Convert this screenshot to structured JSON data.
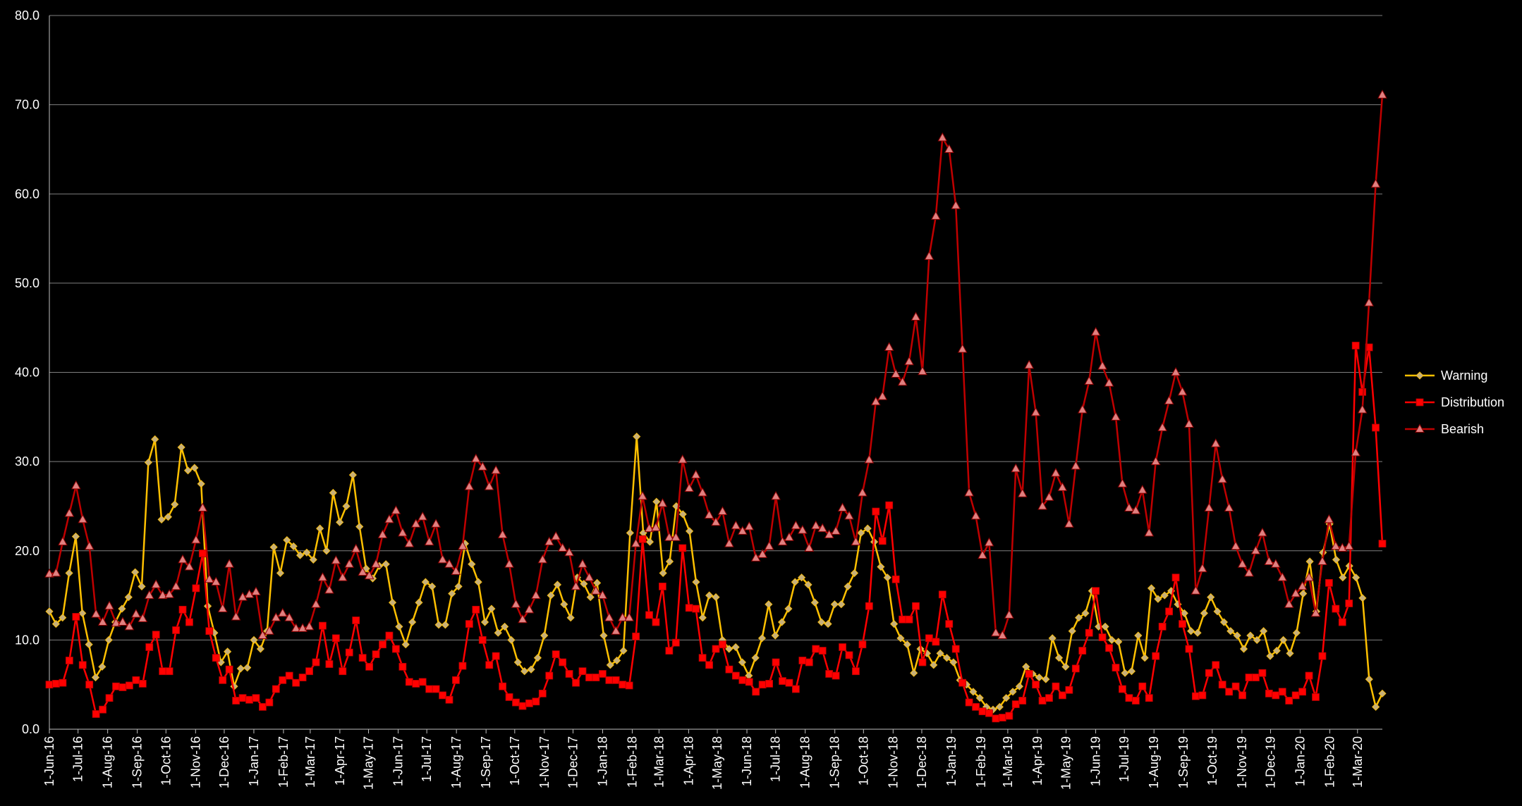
{
  "chart_data": {
    "type": "line",
    "title": "",
    "xlabel": "",
    "ylabel": "",
    "ylim": [
      0,
      80
    ],
    "y_ticks": [
      "0.0",
      "10.0",
      "20.0",
      "30.0",
      "40.0",
      "50.0",
      "60.0",
      "70.0",
      "80.0"
    ],
    "grid": "horizontal",
    "legend_position": "right",
    "background": "#000000",
    "x_start": "2016-06-01",
    "x_end": "2020-03-27",
    "x_ticks": [
      "1-Jun-16",
      "1-Jul-16",
      "1-Aug-16",
      "1-Sep-16",
      "1-Oct-16",
      "1-Nov-16",
      "1-Dec-16",
      "1-Jan-17",
      "1-Feb-17",
      "1-Mar-17",
      "1-Apr-17",
      "1-May-17",
      "1-Jun-17",
      "1-Jul-17",
      "1-Aug-17",
      "1-Sep-17",
      "1-Oct-17",
      "1-Nov-17",
      "1-Dec-17",
      "1-Jan-18",
      "1-Feb-18",
      "1-Mar-18",
      "1-Apr-18",
      "1-May-18",
      "1-Jun-18",
      "1-Jul-18",
      "1-Aug-18",
      "1-Sep-18",
      "1-Oct-18",
      "1-Nov-18",
      "1-Dec-18",
      "1-Jan-19",
      "1-Feb-19",
      "1-Mar-19",
      "1-Apr-19",
      "1-May-19",
      "1-Jun-19",
      "1-Jul-19",
      "1-Aug-19",
      "1-Sep-19",
      "1-Oct-19",
      "1-Nov-19",
      "1-Dec-19",
      "1-Jan-20",
      "1-Feb-20",
      "1-Mar-20"
    ],
    "series": [
      {
        "name": "Warning",
        "color": "#FFC000",
        "marker": "diamond",
        "marker_color": "#C8B078",
        "values": [
          13.2,
          11.8,
          12.5,
          17.5,
          21.6,
          13.0,
          9.5,
          5.8,
          7.0,
          10.0,
          12.0,
          13.5,
          14.8,
          17.6,
          16.0,
          29.9,
          32.5,
          23.5,
          23.8,
          25.2,
          31.6,
          29.0,
          29.3,
          27.5,
          13.8,
          10.8,
          7.5,
          8.7,
          4.8,
          6.8,
          6.9,
          10.0,
          9.0,
          11.0,
          20.4,
          17.5,
          21.2,
          20.5,
          19.5,
          19.8,
          19.0,
          22.5,
          20.0,
          26.5,
          23.2,
          25.0,
          28.5,
          22.7,
          18.0,
          16.9,
          18.3,
          18.5,
          14.2,
          11.5,
          9.5,
          12.0,
          14.2,
          16.5,
          16.0,
          11.7,
          11.7,
          15.2,
          16.0,
          20.8,
          18.5,
          16.5,
          12.0,
          13.5,
          10.8,
          11.5,
          10.0,
          7.5,
          6.5,
          6.7,
          8.0,
          10.5,
          15.0,
          16.2,
          14.0,
          12.5,
          17.0,
          16.3,
          14.8,
          16.4,
          10.5,
          7.2,
          7.7,
          8.8,
          22.0,
          32.8,
          22.0,
          21.0,
          25.5,
          17.5,
          18.8,
          25.0,
          24.1,
          22.2,
          16.5,
          12.5,
          15.0,
          14.8,
          10.0,
          9.0,
          9.2,
          7.5,
          6.0,
          8.0,
          10.2,
          14.0,
          10.5,
          12.0,
          13.5,
          16.5,
          17.0,
          16.2,
          14.2,
          12.0,
          11.8,
          14.0,
          14.0,
          16.0,
          17.5,
          22.0,
          22.5,
          21.0,
          18.2,
          17.0,
          11.8,
          10.2,
          9.5,
          6.3,
          9.0,
          8.5,
          7.2,
          8.5,
          8.0,
          7.5,
          5.5,
          5.0,
          4.2,
          3.5,
          2.5,
          2.2,
          2.5,
          3.5,
          4.2,
          4.8,
          7.0,
          6.2,
          5.8,
          5.6,
          10.2,
          8.0,
          7.0,
          11.0,
          12.5,
          13.0,
          15.5,
          11.5,
          11.5,
          10.0,
          9.8,
          6.3,
          6.5,
          10.5,
          8.0,
          15.8,
          14.6,
          15.0,
          15.5,
          14.0,
          13.0,
          11.0,
          10.8,
          13.0,
          14.8,
          13.2,
          12.0,
          11.0,
          10.5,
          9.0,
          10.5,
          10.0,
          11.0,
          8.2,
          8.8,
          10.0,
          8.5,
          10.8,
          15.2,
          18.8,
          13.2,
          19.8,
          23.0,
          19.0,
          17.0,
          18.3,
          17.0,
          14.7,
          5.6,
          2.5,
          4.0
        ]
      },
      {
        "name": "Distribution",
        "color": "#FF0000",
        "marker": "square",
        "marker_color": "#FF0000",
        "values": [
          5.0,
          5.1,
          5.2,
          7.7,
          12.6,
          7.2,
          5.0,
          1.7,
          2.2,
          3.5,
          4.8,
          4.7,
          4.9,
          5.5,
          5.1,
          9.2,
          10.6,
          6.5,
          6.5,
          11.1,
          13.4,
          12.0,
          15.8,
          19.7,
          11.0,
          8.0,
          5.5,
          6.7,
          3.2,
          3.5,
          3.3,
          3.5,
          2.5,
          3.0,
          4.5,
          5.5,
          6.0,
          5.2,
          5.8,
          6.5,
          7.5,
          11.6,
          7.3,
          10.2,
          6.5,
          8.6,
          12.2,
          8.0,
          7.0,
          8.4,
          9.5,
          10.5,
          9.0,
          7.0,
          5.3,
          5.1,
          5.3,
          4.5,
          4.5,
          3.8,
          3.3,
          5.5,
          7.1,
          11.8,
          13.4,
          10.0,
          7.2,
          8.2,
          4.8,
          3.6,
          3.0,
          2.6,
          2.9,
          3.1,
          4.0,
          6.0,
          8.4,
          7.5,
          6.2,
          5.2,
          6.5,
          5.8,
          5.8,
          6.2,
          5.5,
          5.5,
          5.0,
          4.9,
          10.4,
          21.3,
          12.8,
          12.0,
          16.0,
          8.8,
          9.7,
          20.3,
          13.6,
          13.5,
          8.0,
          7.2,
          9.0,
          9.5,
          6.7,
          6.0,
          5.5,
          5.3,
          4.2,
          5.0,
          5.1,
          7.5,
          5.4,
          5.2,
          4.5,
          7.7,
          7.5,
          9.0,
          8.8,
          6.2,
          6.0,
          9.2,
          8.3,
          6.5,
          9.5,
          13.8,
          24.4,
          21.1,
          25.1,
          16.8,
          12.3,
          12.3,
          13.8,
          7.5,
          10.2,
          9.8,
          15.1,
          11.8,
          9.0,
          5.2,
          3.0,
          2.5,
          2.0,
          1.8,
          1.2,
          1.3,
          1.5,
          2.8,
          3.2,
          6.2,
          5.0,
          3.2,
          3.5,
          4.8,
          3.8,
          4.4,
          6.8,
          8.8,
          10.8,
          15.5,
          10.3,
          9.1,
          6.9,
          4.5,
          3.5,
          3.2,
          4.8,
          3.5,
          8.2,
          11.5,
          13.2,
          17.0,
          11.8,
          9.0,
          3.7,
          3.8,
          6.3,
          7.2,
          5.0,
          4.2,
          4.8,
          3.8,
          5.8,
          5.8,
          6.3,
          4.0,
          3.8,
          4.2,
          3.2,
          3.8,
          4.2,
          6.0,
          3.6,
          8.2,
          16.4,
          13.5,
          12.0,
          14.1,
          43.0,
          37.8,
          42.8,
          33.8,
          20.8
        ]
      },
      {
        "name": "Bearish",
        "color": "#C00000",
        "marker": "triangle",
        "marker_color": "#E08080",
        "values": [
          17.4,
          17.5,
          21.0,
          24.2,
          27.3,
          23.5,
          20.5,
          12.9,
          12.0,
          13.8,
          11.9,
          12.0,
          11.5,
          12.9,
          12.4,
          15.0,
          16.2,
          15.0,
          15.1,
          16.0,
          19.0,
          18.2,
          21.2,
          24.8,
          16.8,
          16.5,
          13.5,
          18.5,
          12.6,
          14.8,
          15.1,
          15.4,
          10.5,
          11.0,
          12.5,
          13.0,
          12.5,
          11.3,
          11.3,
          11.5,
          14.0,
          17.0,
          15.6,
          18.9,
          17.0,
          18.5,
          20.2,
          17.6,
          17.2,
          18.5,
          21.8,
          23.5,
          24.5,
          22.0,
          20.8,
          23.0,
          23.8,
          21.0,
          23.0,
          19.0,
          18.5,
          17.7,
          20.5,
          27.2,
          30.3,
          29.4,
          27.2,
          29.0,
          21.8,
          18.5,
          14.0,
          12.3,
          13.4,
          15.0,
          19.0,
          21.0,
          21.6,
          20.3,
          19.8,
          16.0,
          18.5,
          17.0,
          15.5,
          15.0,
          12.5,
          11.0,
          12.5,
          12.5,
          20.8,
          26.1,
          22.5,
          22.6,
          25.3,
          21.5,
          21.5,
          30.2,
          27.0,
          28.5,
          26.5,
          24.0,
          23.2,
          24.4,
          20.8,
          22.8,
          22.2,
          22.7,
          19.2,
          19.6,
          20.5,
          26.1,
          21.0,
          21.5,
          22.8,
          22.3,
          20.3,
          22.8,
          22.5,
          21.8,
          22.2,
          24.8,
          23.9,
          21.0,
          26.5,
          30.2,
          36.7,
          37.3,
          42.8,
          39.8,
          38.9,
          41.2,
          46.2,
          40.1,
          53.0,
          57.5,
          66.3,
          65.0,
          58.7,
          42.6,
          26.5,
          23.9,
          19.5,
          20.9,
          10.8,
          10.5,
          12.8,
          29.2,
          26.4,
          40.8,
          35.5,
          25.0,
          26.0,
          28.7,
          27.1,
          23.0,
          29.5,
          35.8,
          39.0,
          44.5,
          40.7,
          38.8,
          35.0,
          27.5,
          24.8,
          24.5,
          26.8,
          22.0,
          30.0,
          33.8,
          36.8,
          40.0,
          37.8,
          34.2,
          15.5,
          18.0,
          24.8,
          32.0,
          28.0,
          24.8,
          20.5,
          18.5,
          17.5,
          20.0,
          22.0,
          18.8,
          18.5,
          17.0,
          14.0,
          15.2,
          16.0,
          17.0,
          13.0,
          18.8,
          23.5,
          20.5,
          20.3,
          20.5,
          31.0,
          35.8,
          47.8,
          61.1,
          71.1
        ]
      }
    ]
  }
}
